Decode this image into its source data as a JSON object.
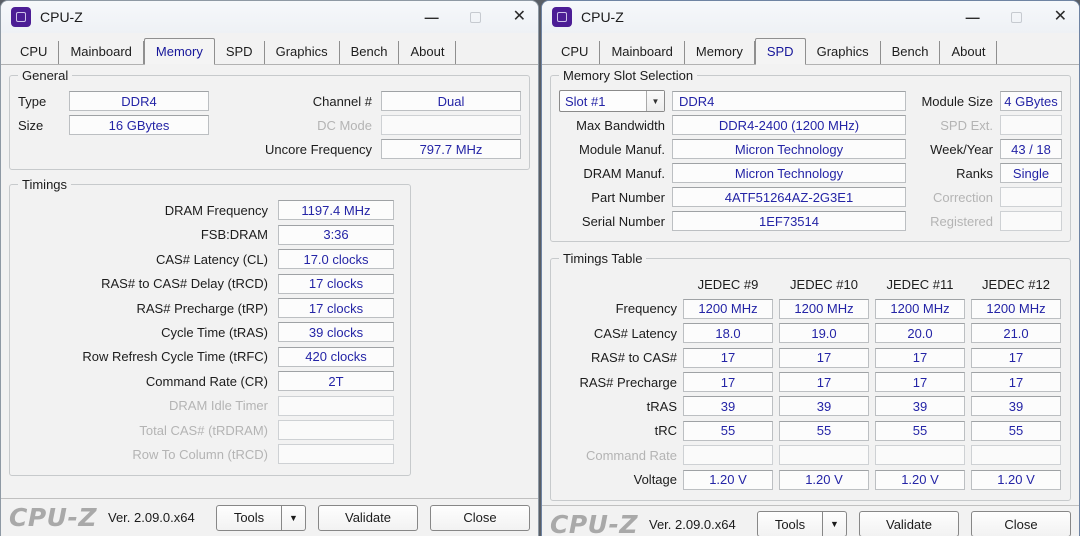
{
  "colors": {
    "value_text": "#2424a6",
    "active_tab_text": "#16169a",
    "app_icon_purple": "#4c1d95",
    "disabled_text": "#b4b4b4",
    "logo_gray": "#a9a9a9"
  },
  "left": {
    "title": "CPU-Z",
    "controls": {
      "minimize": "—",
      "close": "✕"
    },
    "tabs": {
      "items": [
        "CPU",
        "Mainboard",
        "Memory",
        "SPD",
        "Graphics",
        "Bench",
        "About"
      ],
      "active": "Memory"
    },
    "general": {
      "legend": "General",
      "type_label": "Type",
      "type_value": "DDR4",
      "size_label": "Size",
      "size_value": "16 GBytes",
      "channel_label": "Channel #",
      "channel_value": "Dual",
      "dc_mode_label": "DC Mode",
      "dc_mode_value": "",
      "uncore_label": "Uncore Frequency",
      "uncore_value": "797.7 MHz"
    },
    "timings": {
      "legend": "Timings",
      "rows": [
        {
          "label": "DRAM Frequency",
          "value": "1197.4 MHz"
        },
        {
          "label": "FSB:DRAM",
          "value": "3:36"
        },
        {
          "label": "CAS# Latency (CL)",
          "value": "17.0 clocks"
        },
        {
          "label": "RAS# to CAS# Delay (tRCD)",
          "value": "17 clocks"
        },
        {
          "label": "RAS# Precharge (tRP)",
          "value": "17 clocks"
        },
        {
          "label": "Cycle Time (tRAS)",
          "value": "39 clocks"
        },
        {
          "label": "Row Refresh Cycle Time (tRFC)",
          "value": "420 clocks"
        },
        {
          "label": "Command Rate (CR)",
          "value": "2T"
        },
        {
          "label": "DRAM Idle Timer",
          "value": ""
        },
        {
          "label": "Total CAS# (tRDRAM)",
          "value": ""
        },
        {
          "label": "Row To Column (tRCD)",
          "value": ""
        }
      ]
    },
    "footer": {
      "logo": "CPU-Z",
      "version": "Ver. 2.09.0.x64",
      "tools": "Tools",
      "tools_arrow": "▼",
      "validate": "Validate",
      "close": "Close"
    }
  },
  "right": {
    "title": "CPU-Z",
    "controls": {
      "minimize": "—",
      "close": "✕"
    },
    "tabs": {
      "items": [
        "CPU",
        "Mainboard",
        "Memory",
        "SPD",
        "Graphics",
        "Bench",
        "About"
      ],
      "active": "SPD"
    },
    "slot_selection": {
      "legend": "Memory Slot Selection",
      "slot_combo": "Slot #1",
      "combo_arrow": "▼",
      "module_type": "DDR4",
      "module_size_label": "Module Size",
      "module_size_value": "4 GBytes",
      "rows": [
        {
          "l1": "Max Bandwidth",
          "v1": "DDR4-2400 (1200 MHz)",
          "l2": "SPD Ext.",
          "v2": ""
        },
        {
          "l1": "Module Manuf.",
          "v1": "Micron Technology",
          "l2": "Week/Year",
          "v2": "43 / 18"
        },
        {
          "l1": "DRAM Manuf.",
          "v1": "Micron Technology",
          "l2": "Ranks",
          "v2": "Single"
        },
        {
          "l1": "Part Number",
          "v1": "4ATF51264AZ-2G3E1",
          "l2": "Correction",
          "v2": ""
        },
        {
          "l1": "Serial Number",
          "v1": "1EF73514",
          "l2": "Registered",
          "v2": ""
        }
      ]
    },
    "timings_table": {
      "legend": "Timings Table",
      "columns": [
        "JEDEC #9",
        "JEDEC #10",
        "JEDEC #11",
        "JEDEC #12"
      ],
      "rows": [
        {
          "label": "Frequency",
          "values": [
            "1200 MHz",
            "1200 MHz",
            "1200 MHz",
            "1200 MHz"
          ]
        },
        {
          "label": "CAS# Latency",
          "values": [
            "18.0",
            "19.0",
            "20.0",
            "21.0"
          ]
        },
        {
          "label": "RAS# to CAS#",
          "values": [
            "17",
            "17",
            "17",
            "17"
          ]
        },
        {
          "label": "RAS# Precharge",
          "values": [
            "17",
            "17",
            "17",
            "17"
          ]
        },
        {
          "label": "tRAS",
          "values": [
            "39",
            "39",
            "39",
            "39"
          ]
        },
        {
          "label": "tRC",
          "values": [
            "55",
            "55",
            "55",
            "55"
          ]
        },
        {
          "label": "Command Rate",
          "values": [
            "",
            "",
            "",
            ""
          ]
        },
        {
          "label": "Voltage",
          "values": [
            "1.20 V",
            "1.20 V",
            "1.20 V",
            "1.20 V"
          ]
        }
      ]
    },
    "footer": {
      "logo": "CPU-Z",
      "version": "Ver. 2.09.0.x64",
      "tools": "Tools",
      "tools_arrow": "▼",
      "validate": "Validate",
      "close": "Close"
    }
  }
}
